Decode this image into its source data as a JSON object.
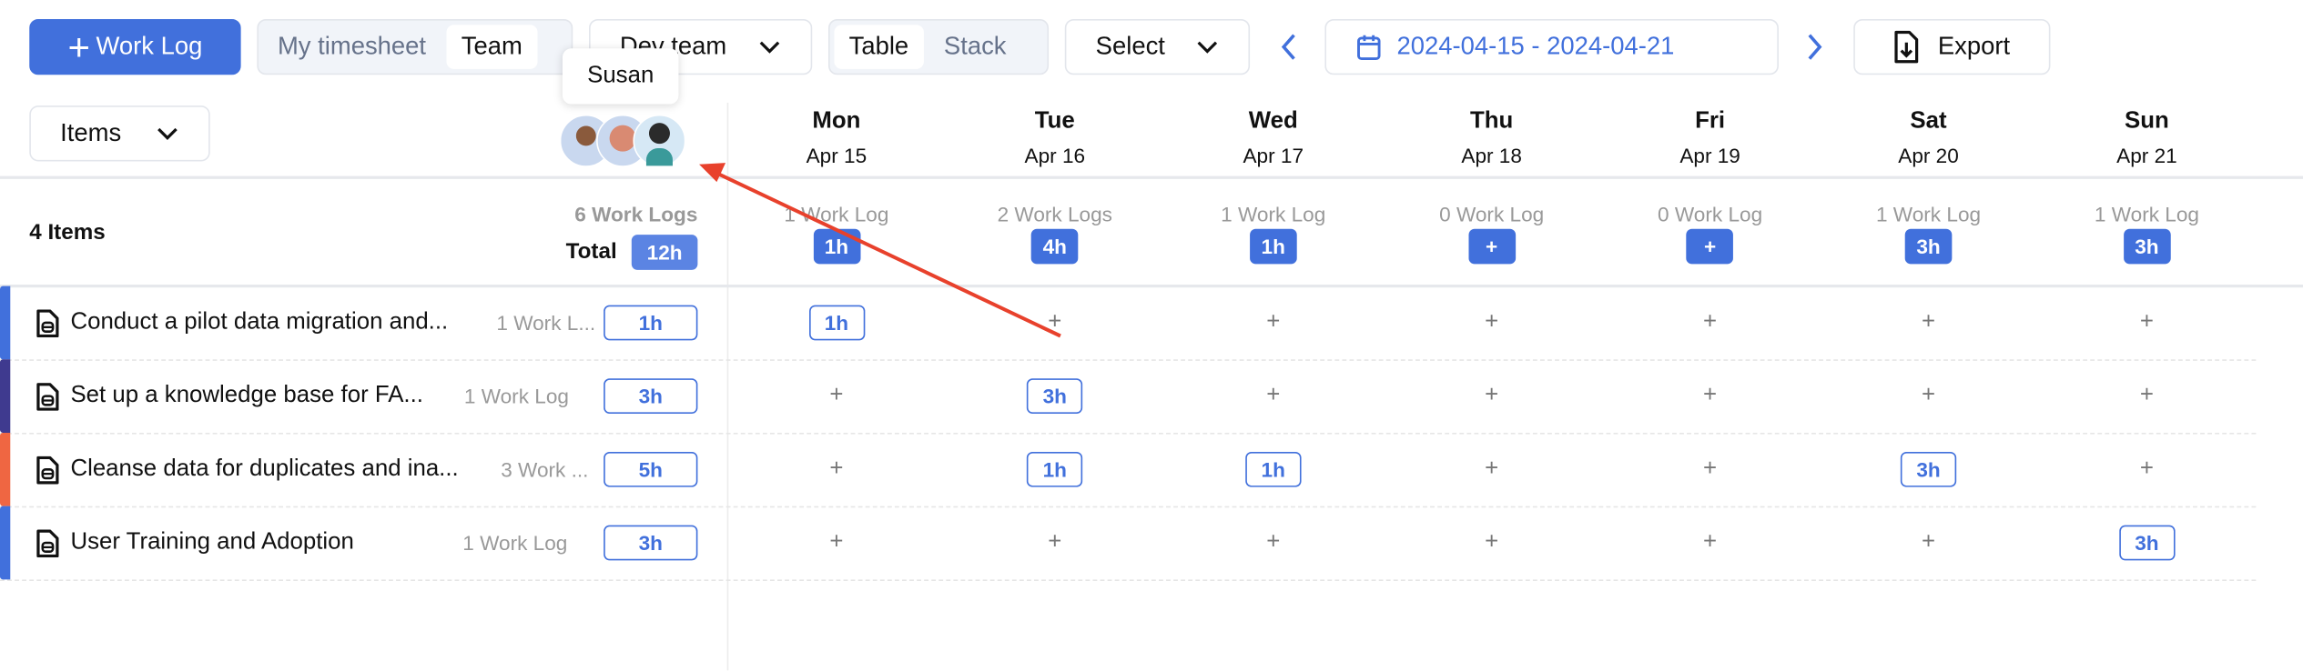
{
  "toolbar": {
    "add_worklog": "Work Log",
    "view_modes": [
      "My timesheet",
      "Team"
    ],
    "team_select": "Dev team",
    "layouts": [
      "Table",
      "Stack"
    ],
    "select": "Select",
    "date_range": "2024-04-15 - 2024-04-21",
    "export": "Export"
  },
  "tooltip": "Susan",
  "group_by": "Items",
  "days": [
    {
      "name": "Mon",
      "date": "Apr 15",
      "count": "1 Work Log",
      "total": "1h"
    },
    {
      "name": "Tue",
      "date": "Apr 16",
      "count": "2 Work Logs",
      "total": "4h"
    },
    {
      "name": "Wed",
      "date": "Apr 17",
      "count": "1 Work Log",
      "total": "1h"
    },
    {
      "name": "Thu",
      "date": "Apr 18",
      "count": "0 Work Log",
      "total": "+"
    },
    {
      "name": "Fri",
      "date": "Apr 19",
      "count": "0 Work Log",
      "total": "+"
    },
    {
      "name": "Sat",
      "date": "Apr 20",
      "count": "1 Work Log",
      "total": "3h"
    },
    {
      "name": "Sun",
      "date": "Apr 21",
      "count": "1 Work Log",
      "total": "3h"
    }
  ],
  "summary": {
    "items": "4 Items",
    "count": "6 Work Logs",
    "total_label": "Total",
    "total": "12h"
  },
  "colors": {
    "accent": "#4170dc",
    "annotation_arrow": "#e8412c"
  },
  "rows": [
    {
      "title": "Conduct a pilot data migration and...",
      "count": "1 Work L...",
      "total": "1h",
      "color": "#4170dc",
      "cells": [
        "1h",
        "+",
        "+",
        "+",
        "+",
        "+",
        "+"
      ]
    },
    {
      "title": "Set up a knowledge base for FA...",
      "count": "1 Work Log",
      "total": "3h",
      "color": "#3f3a8f",
      "cells": [
        "+",
        "3h",
        "+",
        "+",
        "+",
        "+",
        "+"
      ]
    },
    {
      "title": "Cleanse data for duplicates and ina...",
      "count": "3 Work ...",
      "total": "5h",
      "color": "#ef6642",
      "cells": [
        "+",
        "1h",
        "1h",
        "+",
        "+",
        "3h",
        "+"
      ]
    },
    {
      "title": "User Training and Adoption",
      "count": "1 Work Log",
      "total": "3h",
      "color": "#4170dc",
      "cells": [
        "+",
        "+",
        "+",
        "+",
        "+",
        "+",
        "3h"
      ]
    }
  ]
}
